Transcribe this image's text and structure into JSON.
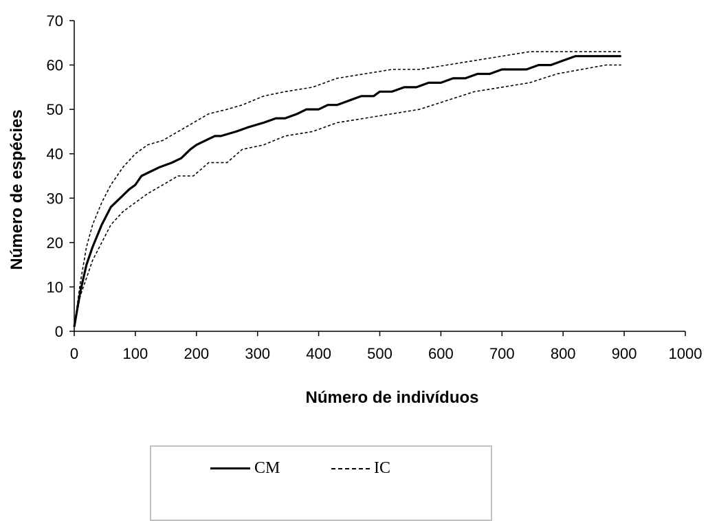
{
  "chart_data": {
    "type": "line",
    "xlabel": "Número de indivíduos",
    "ylabel": "Número de espécies",
    "xlim": [
      0,
      1000
    ],
    "ylim": [
      0,
      70
    ],
    "xticks": [
      "0",
      "100",
      "200",
      "300",
      "400",
      "500",
      "600",
      "700",
      "800",
      "900",
      "1000"
    ],
    "yticks": [
      "0",
      "10",
      "20",
      "30",
      "40",
      "50",
      "60",
      "70"
    ],
    "grid": false,
    "legend_position": "bottom",
    "series": [
      {
        "name": "CM",
        "style": "solid",
        "x": [
          0,
          10,
          20,
          30,
          45,
          60,
          75,
          90,
          100,
          110,
          125,
          140,
          160,
          175,
          190,
          200,
          215,
          230,
          240,
          265,
          285,
          310,
          330,
          345,
          365,
          380,
          400,
          415,
          430,
          450,
          470,
          490,
          500,
          520,
          540,
          560,
          580,
          600,
          620,
          640,
          660,
          680,
          700,
          720,
          740,
          760,
          780,
          800,
          820,
          840,
          860,
          880,
          895
        ],
        "y": [
          1,
          9,
          15,
          19,
          24,
          28,
          30,
          32,
          33,
          35,
          36,
          37,
          38,
          39,
          41,
          42,
          43,
          44,
          44,
          45,
          46,
          47,
          48,
          48,
          49,
          50,
          50,
          51,
          51,
          52,
          53,
          53,
          54,
          54,
          55,
          55,
          56,
          56,
          57,
          57,
          58,
          58,
          59,
          59,
          59,
          60,
          60,
          61,
          62,
          62,
          62,
          62,
          62
        ]
      },
      {
        "name": "IC",
        "style": "dashed",
        "x": [
          0,
          10,
          20,
          30,
          45,
          60,
          80,
          100,
          120,
          145,
          170,
          195,
          220,
          250,
          275,
          310,
          345,
          390,
          430,
          475,
          520,
          565,
          610,
          655,
          700,
          745,
          790,
          830,
          870,
          895
        ],
        "y": [
          1,
          11,
          19,
          24,
          29,
          33,
          37,
          40,
          42,
          43,
          45,
          47,
          49,
          50,
          51,
          53,
          54,
          55,
          57,
          58,
          59,
          59,
          60,
          61,
          62,
          63,
          63,
          63,
          63,
          63
        ]
      },
      {
        "name": "IC",
        "style": "dashed",
        "x": [
          0,
          10,
          20,
          30,
          45,
          60,
          80,
          100,
          120,
          145,
          170,
          195,
          220,
          250,
          275,
          310,
          345,
          390,
          430,
          475,
          520,
          565,
          610,
          655,
          700,
          745,
          790,
          830,
          870,
          895
        ],
        "y": [
          1,
          8,
          12,
          16,
          20,
          24,
          27,
          29,
          31,
          33,
          35,
          35,
          38,
          38,
          41,
          42,
          44,
          45,
          47,
          48,
          49,
          50,
          52,
          54,
          55,
          56,
          58,
          59,
          60,
          60
        ]
      }
    ],
    "legend": [
      "CM",
      "IC"
    ]
  },
  "legend_labels": {
    "cm": "CM",
    "ic": "IC"
  },
  "colors": {
    "line": "#000000",
    "legend_border": "#c0c0c0"
  }
}
